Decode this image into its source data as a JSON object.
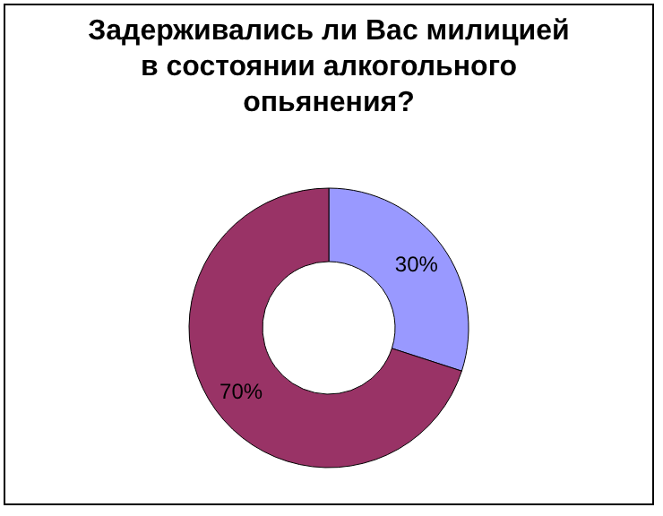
{
  "chart_data": {
    "type": "donut",
    "title": "Задерживались ли Вас милицией\nв состоянии алкогольного\nопьянения?",
    "categories": [
      null,
      null
    ],
    "values": [
      30,
      70
    ],
    "colors": [
      "#9999ff",
      "#993366"
    ],
    "value_labels": [
      "30%",
      "70%"
    ]
  }
}
